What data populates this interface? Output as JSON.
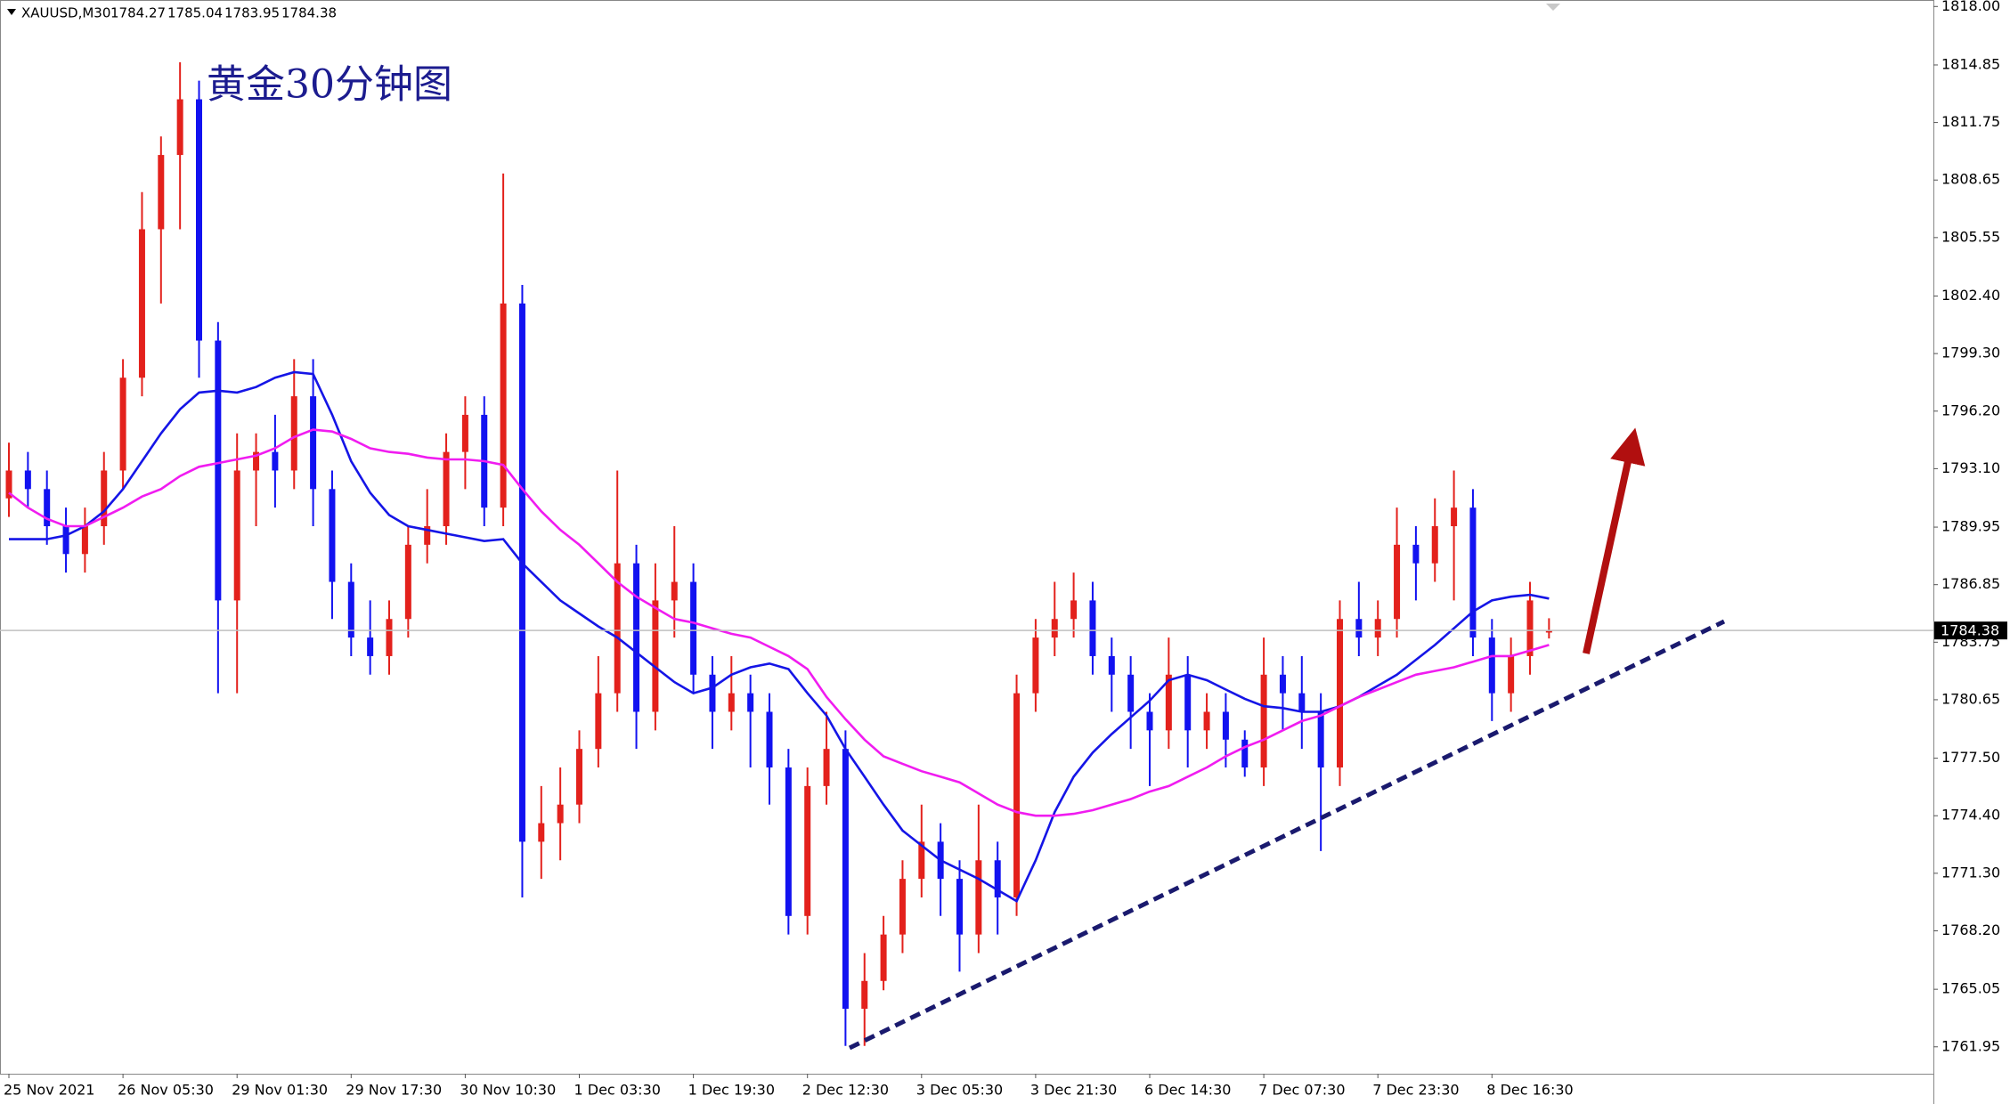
{
  "chart_data": {
    "type": "candlestick",
    "symbol": "XAUUSD,M30",
    "title": "黄金30分钟图",
    "up_color": "#e3211c",
    "down_color": "#1212f0",
    "categories": [
      "25 Nov 2021",
      null,
      null,
      null,
      null,
      null,
      "26 Nov 05:30",
      null,
      null,
      null,
      null,
      null,
      "29 Nov 01:30",
      null,
      null,
      null,
      null,
      null,
      "29 Nov 17:30",
      null,
      null,
      null,
      null,
      null,
      "30 Nov 10:30",
      null,
      null,
      null,
      null,
      null,
      "1 Dec 03:30",
      null,
      null,
      null,
      null,
      null,
      "1 Dec 19:30",
      null,
      null,
      null,
      null,
      null,
      "2 Dec 12:30",
      null,
      null,
      null,
      null,
      null,
      "3 Dec 05:30",
      null,
      null,
      null,
      null,
      null,
      "3 Dec 21:30",
      null,
      null,
      null,
      null,
      null,
      "6 Dec 14:30",
      null,
      null,
      null,
      null,
      null,
      "7 Dec 07:30",
      null,
      null,
      null,
      null,
      null,
      "7 Dec 23:30",
      null,
      null,
      null,
      null,
      null,
      "8 Dec 16:30",
      null,
      null,
      null
    ],
    "open": [
      1791.5,
      1793,
      1792,
      1790,
      1788.5,
      1790,
      1793,
      1798,
      1806,
      1810,
      1813,
      1800,
      1786,
      1793,
      1794,
      1793,
      1797,
      1792,
      1787,
      1784,
      1783,
      1785,
      1789,
      1790,
      1794,
      1796,
      1791,
      1802,
      1773,
      1774,
      1775,
      1778,
      1781,
      1788,
      1780,
      1786,
      1787,
      1782,
      1780,
      1781,
      1780,
      1777,
      1769,
      1776,
      1778,
      1764,
      1765.5,
      1768,
      1771,
      1773,
      1771,
      1768,
      1772,
      1770,
      1781,
      1784,
      1785,
      1786,
      1783,
      1782,
      1780,
      1779,
      1782,
      1779,
      1780,
      1778.5,
      1777,
      1782,
      1781,
      1780,
      1777,
      1785,
      1784,
      1785,
      1789,
      1788,
      1790,
      1791,
      1784,
      1781,
      1783,
      1784.27
    ],
    "high": [
      1794.5,
      1794,
      1793,
      1791,
      1791,
      1794,
      1799,
      1808,
      1811,
      1815,
      1814,
      1801,
      1795,
      1795,
      1796,
      1799,
      1799,
      1793,
      1788,
      1786,
      1786,
      1790,
      1792,
      1795,
      1797,
      1797,
      1809,
      1803,
      1776,
      1777,
      1779,
      1783,
      1793,
      1789,
      1788,
      1790,
      1788,
      1783,
      1783,
      1782,
      1781,
      1778,
      1777,
      1780,
      1779,
      1767,
      1769,
      1772,
      1775,
      1774,
      1772,
      1775,
      1773,
      1782,
      1785,
      1787,
      1787.5,
      1787,
      1784,
      1783,
      1781,
      1784,
      1783,
      1781,
      1781,
      1779,
      1784,
      1783,
      1783,
      1781,
      1786,
      1787,
      1786,
      1791,
      1790,
      1791.5,
      1793,
      1792,
      1785,
      1784,
      1787,
      1785.04
    ],
    "low": [
      1790.5,
      1791,
      1789,
      1787.5,
      1787.5,
      1789,
      1792,
      1797,
      1802,
      1806,
      1798,
      1781,
      1781,
      1790,
      1791,
      1792,
      1790,
      1785,
      1783,
      1782,
      1782,
      1784,
      1788,
      1789,
      1792,
      1790,
      1790,
      1770,
      1771,
      1772,
      1774,
      1777,
      1780,
      1778,
      1779,
      1784,
      1781,
      1778,
      1779,
      1777,
      1775,
      1768,
      1768,
      1775,
      1762,
      1762,
      1765,
      1767,
      1770,
      1769,
      1766,
      1767,
      1768,
      1769,
      1780,
      1783,
      1784,
      1782,
      1780,
      1778,
      1776,
      1778,
      1777,
      1778,
      1777,
      1776.5,
      1776,
      1779,
      1778,
      1772.5,
      1776,
      1783,
      1783,
      1784,
      1786,
      1787,
      1786,
      1783,
      1779.5,
      1780,
      1782,
      1783.95
    ],
    "close": [
      1793,
      1792,
      1790,
      1788.5,
      1790,
      1793,
      1798,
      1806,
      1810,
      1813,
      1800,
      1786,
      1793,
      1794,
      1793,
      1797,
      1792,
      1787,
      1784,
      1783,
      1785,
      1789,
      1790,
      1794,
      1796,
      1791,
      1802,
      1773,
      1774,
      1775,
      1778,
      1781,
      1788,
      1780,
      1786,
      1787,
      1782,
      1780,
      1781,
      1780,
      1777,
      1769,
      1776,
      1778,
      1764,
      1765.5,
      1768,
      1771,
      1773,
      1771,
      1768,
      1772,
      1770,
      1781,
      1784,
      1785,
      1786,
      1783,
      1782,
      1780,
      1779,
      1782,
      1779,
      1780,
      1778.5,
      1777,
      1782,
      1781,
      1780,
      1777,
      1785,
      1784,
      1785,
      1789,
      1788,
      1790,
      1791,
      1784,
      1781,
      1783,
      1786,
      1784.38
    ],
    "moving_averages": [
      {
        "color": "#1515e6",
        "values": [
          1789.3,
          1789.3,
          1789.3,
          1789.5,
          1790,
          1790.8,
          1792,
          1793.5,
          1795,
          1796.3,
          1797.2,
          1797.3,
          1797.2,
          1797.5,
          1798,
          1798.3,
          1798.2,
          1796,
          1793.5,
          1791.8,
          1790.6,
          1790,
          1789.8,
          1789.6,
          1789.4,
          1789.2,
          1789.3,
          1788,
          1787,
          1786,
          1785.3,
          1784.6,
          1784,
          1783.2,
          1782.4,
          1781.6,
          1781,
          1781.3,
          1782,
          1782.4,
          1782.6,
          1782.3,
          1781,
          1779.8,
          1778,
          1776.5,
          1775,
          1773.6,
          1772.8,
          1772,
          1771.5,
          1771,
          1770.4,
          1769.8,
          1772,
          1774.6,
          1776.5,
          1777.8,
          1778.8,
          1779.7,
          1780.6,
          1781.7,
          1782,
          1781.7,
          1781.2,
          1780.7,
          1780.3,
          1780.2,
          1780,
          1780,
          1780.3,
          1780.8,
          1781.4,
          1782,
          1782.8,
          1783.6,
          1784.5,
          1785.4,
          1786,
          1786.2,
          1786.3,
          1786.1
        ]
      },
      {
        "color": "#f01cf0",
        "values": [
          1791.8,
          1791,
          1790.4,
          1790,
          1790,
          1790.5,
          1791,
          1791.6,
          1792,
          1792.7,
          1793.2,
          1793.4,
          1793.6,
          1793.8,
          1794.2,
          1794.8,
          1795.2,
          1795.1,
          1794.7,
          1794.2,
          1794,
          1793.9,
          1793.7,
          1793.6,
          1793.6,
          1793.5,
          1793.3,
          1792,
          1790.8,
          1789.8,
          1789,
          1788,
          1787,
          1786.2,
          1785.6,
          1785,
          1784.8,
          1784.5,
          1784.2,
          1784,
          1783.5,
          1783,
          1782.3,
          1780.8,
          1779.6,
          1778.5,
          1777.6,
          1777.2,
          1776.8,
          1776.5,
          1776.2,
          1775.6,
          1775,
          1774.6,
          1774.4,
          1774.4,
          1774.5,
          1774.7,
          1775,
          1775.3,
          1775.7,
          1776,
          1776.5,
          1777,
          1777.6,
          1778.1,
          1778.5,
          1779,
          1779.5,
          1779.8,
          1780.3,
          1780.8,
          1781.2,
          1781.6,
          1782,
          1782.2,
          1782.4,
          1782.7,
          1783,
          1783,
          1783.3,
          1783.6
        ]
      }
    ],
    "ylim": [
      1760.5,
      1818.35
    ],
    "yticks": [
      {
        "value": 1818,
        "label": "1818.00"
      },
      {
        "value": 1814.85,
        "label": "1814.85"
      },
      {
        "value": 1811.75,
        "label": "1811.75"
      },
      {
        "value": 1808.65,
        "label": "1808.65"
      },
      {
        "value": 1805.55,
        "label": "1805.55"
      },
      {
        "value": 1802.4,
        "label": "1802.40"
      },
      {
        "value": 1799.3,
        "label": "1799.30"
      },
      {
        "value": 1796.2,
        "label": "1796.20"
      },
      {
        "value": 1793.1,
        "label": "1793.10"
      },
      {
        "value": 1789.95,
        "label": "1789.95"
      },
      {
        "value": 1786.85,
        "label": "1786.85"
      },
      {
        "value": 1783.75,
        "label": "1783.75"
      },
      {
        "value": 1780.65,
        "label": "1780.65"
      },
      {
        "value": 1777.5,
        "label": "1777.50"
      },
      {
        "value": 1774.4,
        "label": "1774.40"
      },
      {
        "value": 1771.3,
        "label": "1771.30"
      },
      {
        "value": 1768.2,
        "label": "1768.20"
      },
      {
        "value": 1765.05,
        "label": "1765.05"
      },
      {
        "value": 1761.95,
        "label": "1761.95"
      }
    ],
    "grid": false
  }
}
